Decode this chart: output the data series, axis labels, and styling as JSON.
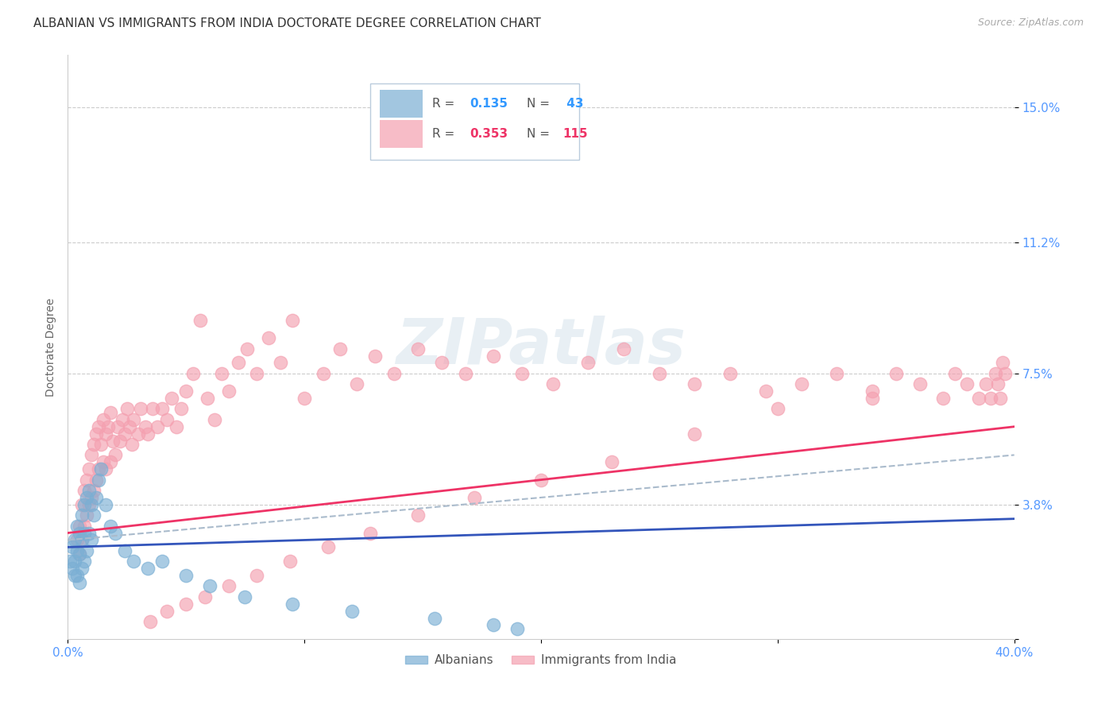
{
  "title": "ALBANIAN VS IMMIGRANTS FROM INDIA DOCTORATE DEGREE CORRELATION CHART",
  "source": "Source: ZipAtlas.com",
  "ylabel": "Doctorate Degree",
  "y_ticks": [
    0.0,
    0.038,
    0.075,
    0.112,
    0.15
  ],
  "y_tick_labels": [
    "",
    "3.8%",
    "7.5%",
    "11.2%",
    "15.0%"
  ],
  "x_range": [
    0.0,
    0.4
  ],
  "y_range": [
    0.0,
    0.165
  ],
  "albanians_color": "#7bafd4",
  "india_color": "#f4a0b0",
  "albanians_line_color": "#3355bb",
  "india_line_color": "#ee3366",
  "dash_line_color": "#aabbcc",
  "watermark": "ZIPatlas",
  "bg_color": "#ffffff",
  "grid_color": "#cccccc",
  "title_fontsize": 11,
  "axis_label_fontsize": 10,
  "tick_label_color": "#5599ff",
  "tick_label_fontsize": 11,
  "albanians_x": [
    0.001,
    0.002,
    0.002,
    0.003,
    0.003,
    0.003,
    0.004,
    0.004,
    0.004,
    0.005,
    0.005,
    0.005,
    0.006,
    0.006,
    0.006,
    0.007,
    0.007,
    0.007,
    0.008,
    0.008,
    0.009,
    0.009,
    0.01,
    0.01,
    0.011,
    0.012,
    0.013,
    0.014,
    0.016,
    0.018,
    0.02,
    0.024,
    0.028,
    0.034,
    0.04,
    0.05,
    0.06,
    0.075,
    0.095,
    0.12,
    0.155,
    0.18,
    0.19
  ],
  "albanians_y": [
    0.022,
    0.026,
    0.02,
    0.028,
    0.022,
    0.018,
    0.032,
    0.025,
    0.018,
    0.03,
    0.024,
    0.016,
    0.035,
    0.028,
    0.02,
    0.038,
    0.03,
    0.022,
    0.04,
    0.025,
    0.042,
    0.03,
    0.038,
    0.028,
    0.035,
    0.04,
    0.045,
    0.048,
    0.038,
    0.032,
    0.03,
    0.025,
    0.022,
    0.02,
    0.022,
    0.018,
    0.015,
    0.012,
    0.01,
    0.008,
    0.006,
    0.004,
    0.003
  ],
  "india_x": [
    0.004,
    0.005,
    0.005,
    0.006,
    0.006,
    0.007,
    0.007,
    0.008,
    0.008,
    0.009,
    0.009,
    0.01,
    0.01,
    0.011,
    0.011,
    0.012,
    0.012,
    0.013,
    0.013,
    0.014,
    0.015,
    0.015,
    0.016,
    0.016,
    0.017,
    0.018,
    0.018,
    0.019,
    0.02,
    0.021,
    0.022,
    0.023,
    0.024,
    0.025,
    0.026,
    0.027,
    0.028,
    0.03,
    0.031,
    0.033,
    0.034,
    0.036,
    0.038,
    0.04,
    0.042,
    0.044,
    0.046,
    0.048,
    0.05,
    0.053,
    0.056,
    0.059,
    0.062,
    0.065,
    0.068,
    0.072,
    0.076,
    0.08,
    0.085,
    0.09,
    0.095,
    0.1,
    0.108,
    0.115,
    0.122,
    0.13,
    0.138,
    0.148,
    0.158,
    0.168,
    0.18,
    0.192,
    0.205,
    0.22,
    0.235,
    0.25,
    0.265,
    0.28,
    0.295,
    0.31,
    0.325,
    0.34,
    0.35,
    0.36,
    0.37,
    0.375,
    0.38,
    0.385,
    0.388,
    0.39,
    0.392,
    0.393,
    0.394,
    0.395,
    0.396,
    0.34,
    0.3,
    0.265,
    0.23,
    0.2,
    0.172,
    0.148,
    0.128,
    0.11,
    0.094,
    0.08,
    0.068,
    0.058,
    0.05,
    0.042,
    0.035
  ],
  "india_y": [
    0.028,
    0.032,
    0.024,
    0.038,
    0.028,
    0.042,
    0.032,
    0.045,
    0.035,
    0.048,
    0.038,
    0.052,
    0.04,
    0.055,
    0.042,
    0.058,
    0.045,
    0.06,
    0.048,
    0.055,
    0.062,
    0.05,
    0.058,
    0.048,
    0.06,
    0.064,
    0.05,
    0.056,
    0.052,
    0.06,
    0.056,
    0.062,
    0.058,
    0.065,
    0.06,
    0.055,
    0.062,
    0.058,
    0.065,
    0.06,
    0.058,
    0.065,
    0.06,
    0.065,
    0.062,
    0.068,
    0.06,
    0.065,
    0.07,
    0.075,
    0.09,
    0.068,
    0.062,
    0.075,
    0.07,
    0.078,
    0.082,
    0.075,
    0.085,
    0.078,
    0.09,
    0.068,
    0.075,
    0.082,
    0.072,
    0.08,
    0.075,
    0.082,
    0.078,
    0.075,
    0.08,
    0.075,
    0.072,
    0.078,
    0.082,
    0.075,
    0.072,
    0.075,
    0.07,
    0.072,
    0.075,
    0.07,
    0.075,
    0.072,
    0.068,
    0.075,
    0.072,
    0.068,
    0.072,
    0.068,
    0.075,
    0.072,
    0.068,
    0.078,
    0.075,
    0.068,
    0.065,
    0.058,
    0.05,
    0.045,
    0.04,
    0.035,
    0.03,
    0.026,
    0.022,
    0.018,
    0.015,
    0.012,
    0.01,
    0.008,
    0.005
  ],
  "alb_line_x": [
    0.0,
    0.4
  ],
  "alb_line_y": [
    0.026,
    0.034
  ],
  "ind_line_x": [
    0.0,
    0.4
  ],
  "ind_line_y": [
    0.03,
    0.06
  ],
  "dash_line_x": [
    0.0,
    0.4
  ],
  "dash_line_y": [
    0.028,
    0.052
  ]
}
